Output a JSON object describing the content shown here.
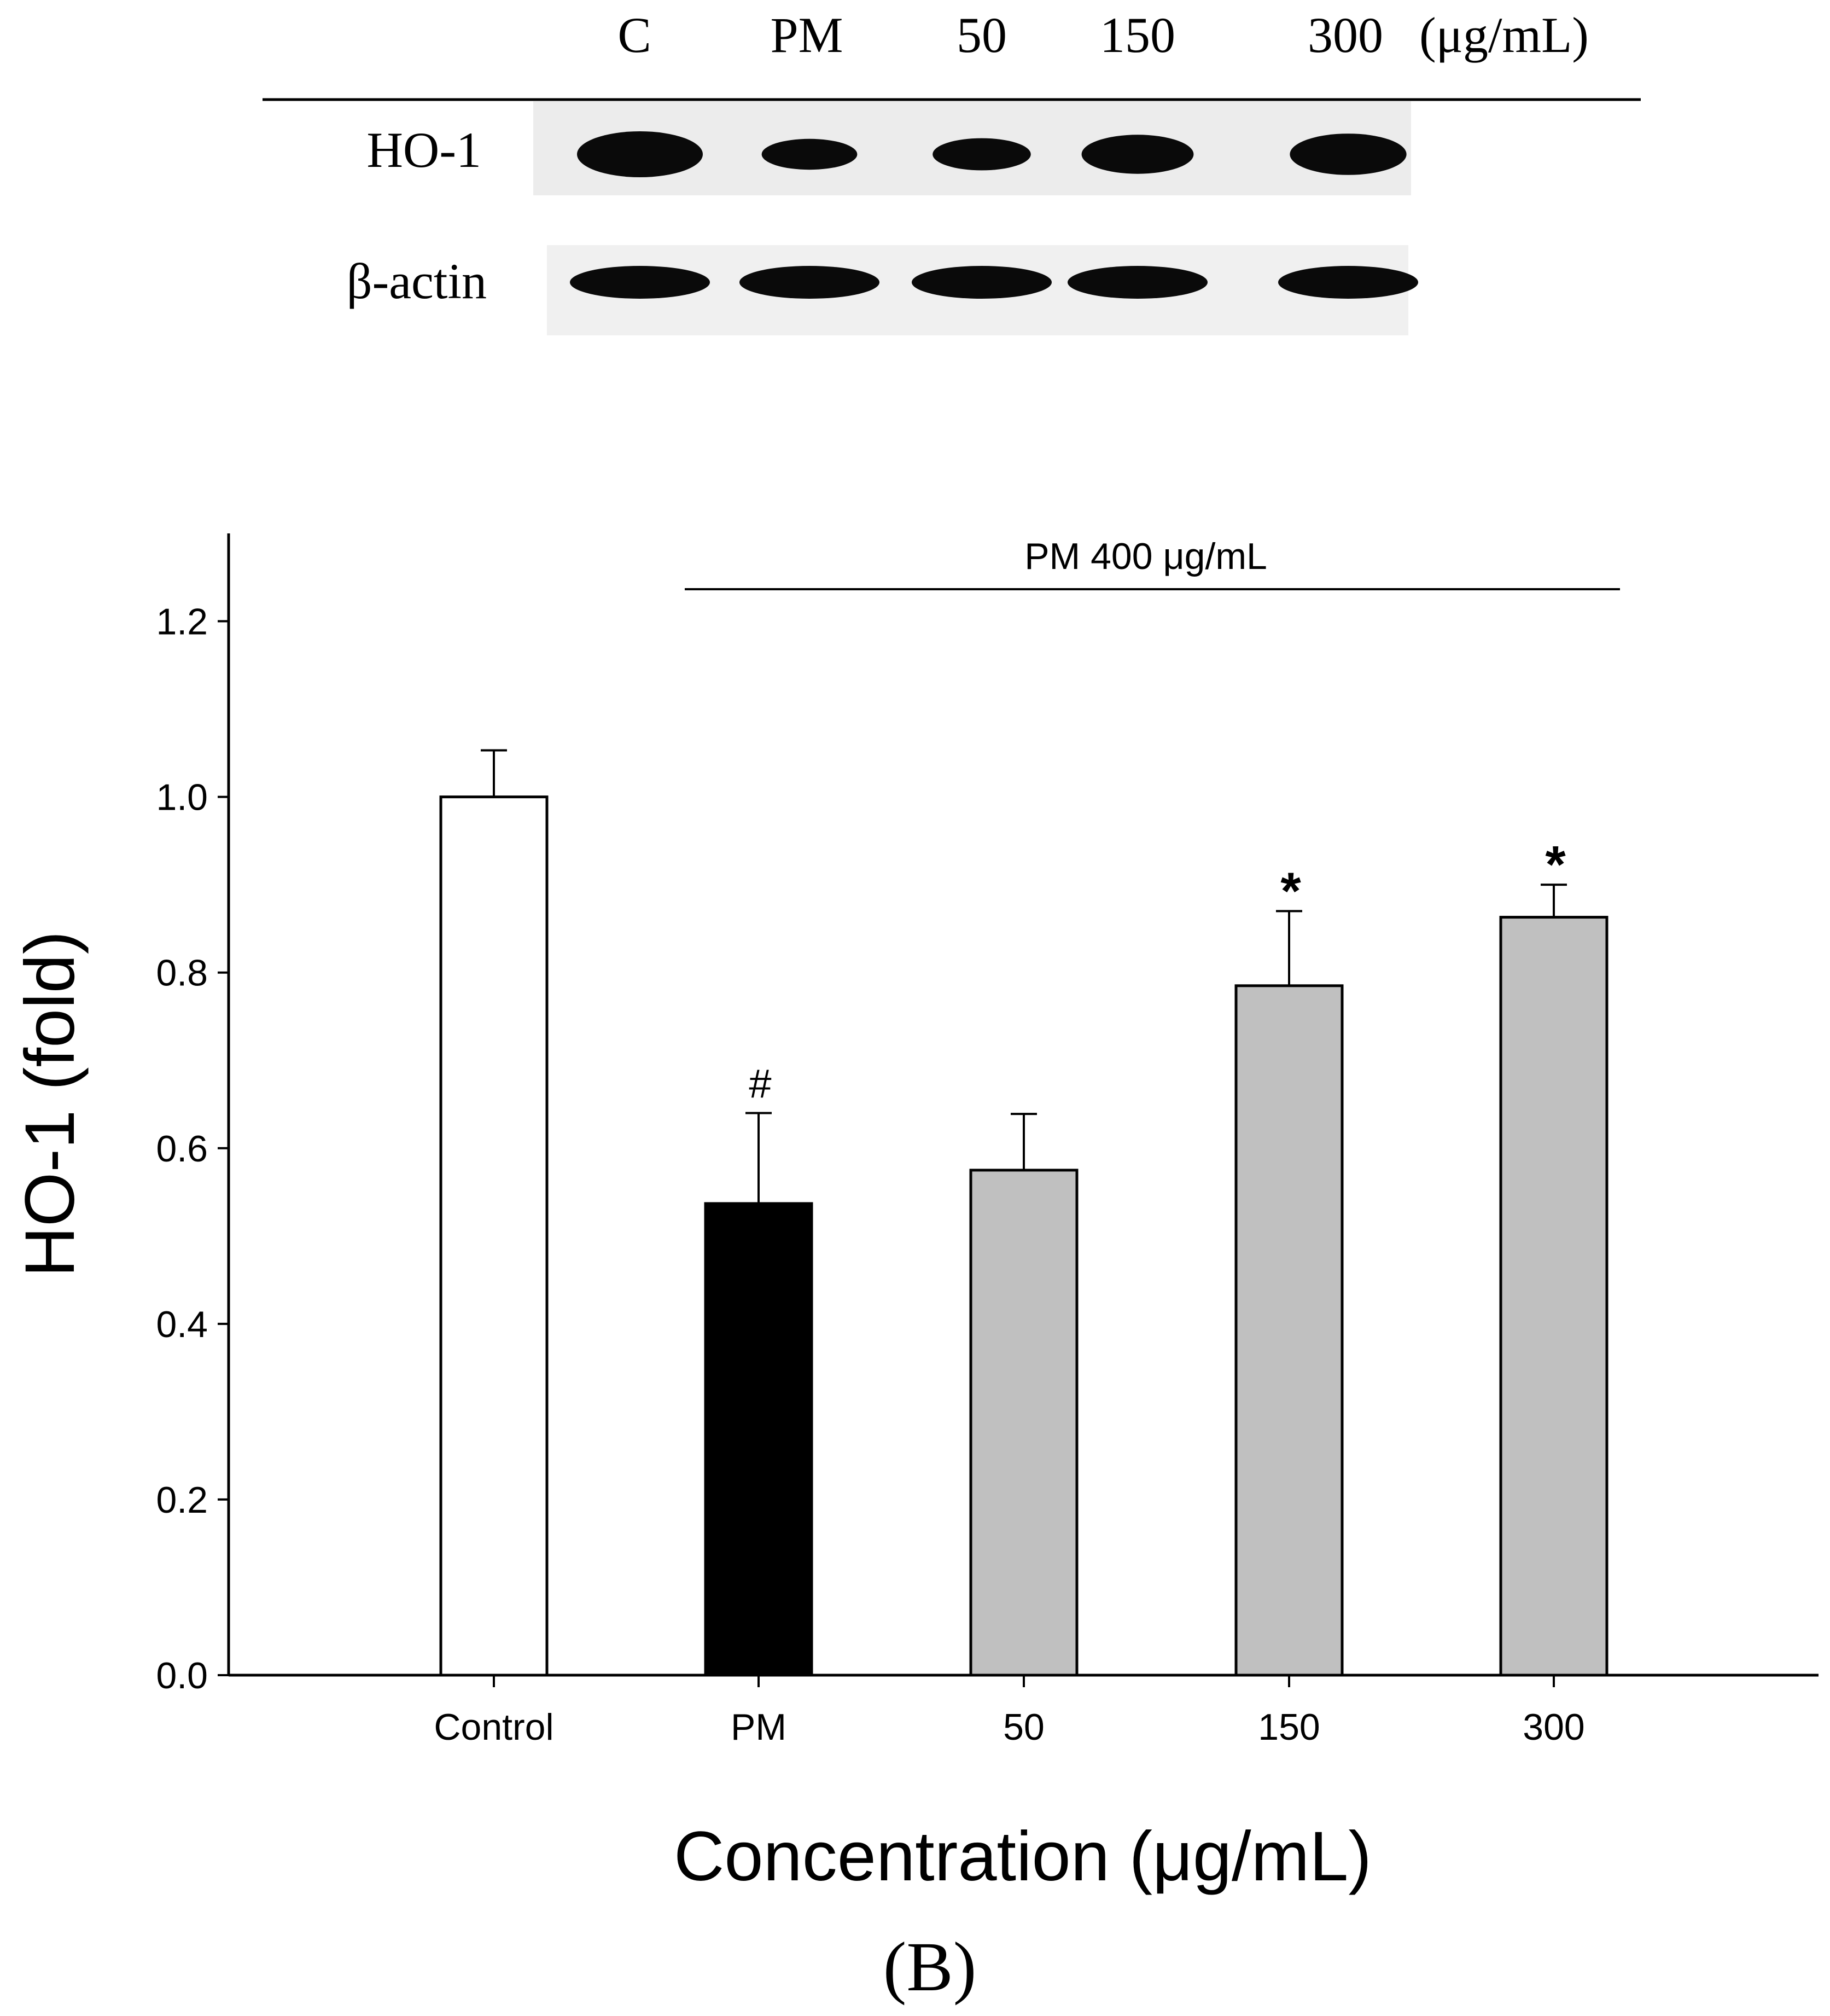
{
  "blot": {
    "lanes": [
      "C",
      "PM",
      "50",
      "150",
      "300"
    ],
    "unit": "(μg/mL)",
    "rows": [
      {
        "label": "HO-1",
        "intensity": [
          1.0,
          0.54,
          0.58,
          0.79,
          0.86
        ]
      },
      {
        "label": "β-actin",
        "intensity": [
          1.0,
          1.0,
          1.0,
          1.0,
          1.0
        ]
      }
    ]
  },
  "panel_label": "(B)",
  "chart_data": {
    "type": "bar",
    "categories": [
      "Control",
      "PM",
      "50",
      "150",
      "300"
    ],
    "values": [
      1.0,
      0.537,
      0.575,
      0.785,
      0.863
    ],
    "errors": [
      0.053,
      0.103,
      0.064,
      0.085,
      0.037
    ],
    "markers": [
      "",
      "#",
      "",
      "*",
      "*"
    ],
    "bar_colors": [
      "#ffffff",
      "#000000",
      "#c0c0c0",
      "#c0c0c0",
      "#c0c0c0"
    ],
    "group_label": "PM 400 μg/mL",
    "xlabel": "Concentration (μg/mL)",
    "ylabel": "HO-1 (fold)",
    "ylim": [
      0,
      1.3
    ],
    "yticks": [
      "0.0",
      "0.2",
      "0.4",
      "0.6",
      "0.8",
      "1.0",
      "1.2"
    ],
    "grid": false
  }
}
